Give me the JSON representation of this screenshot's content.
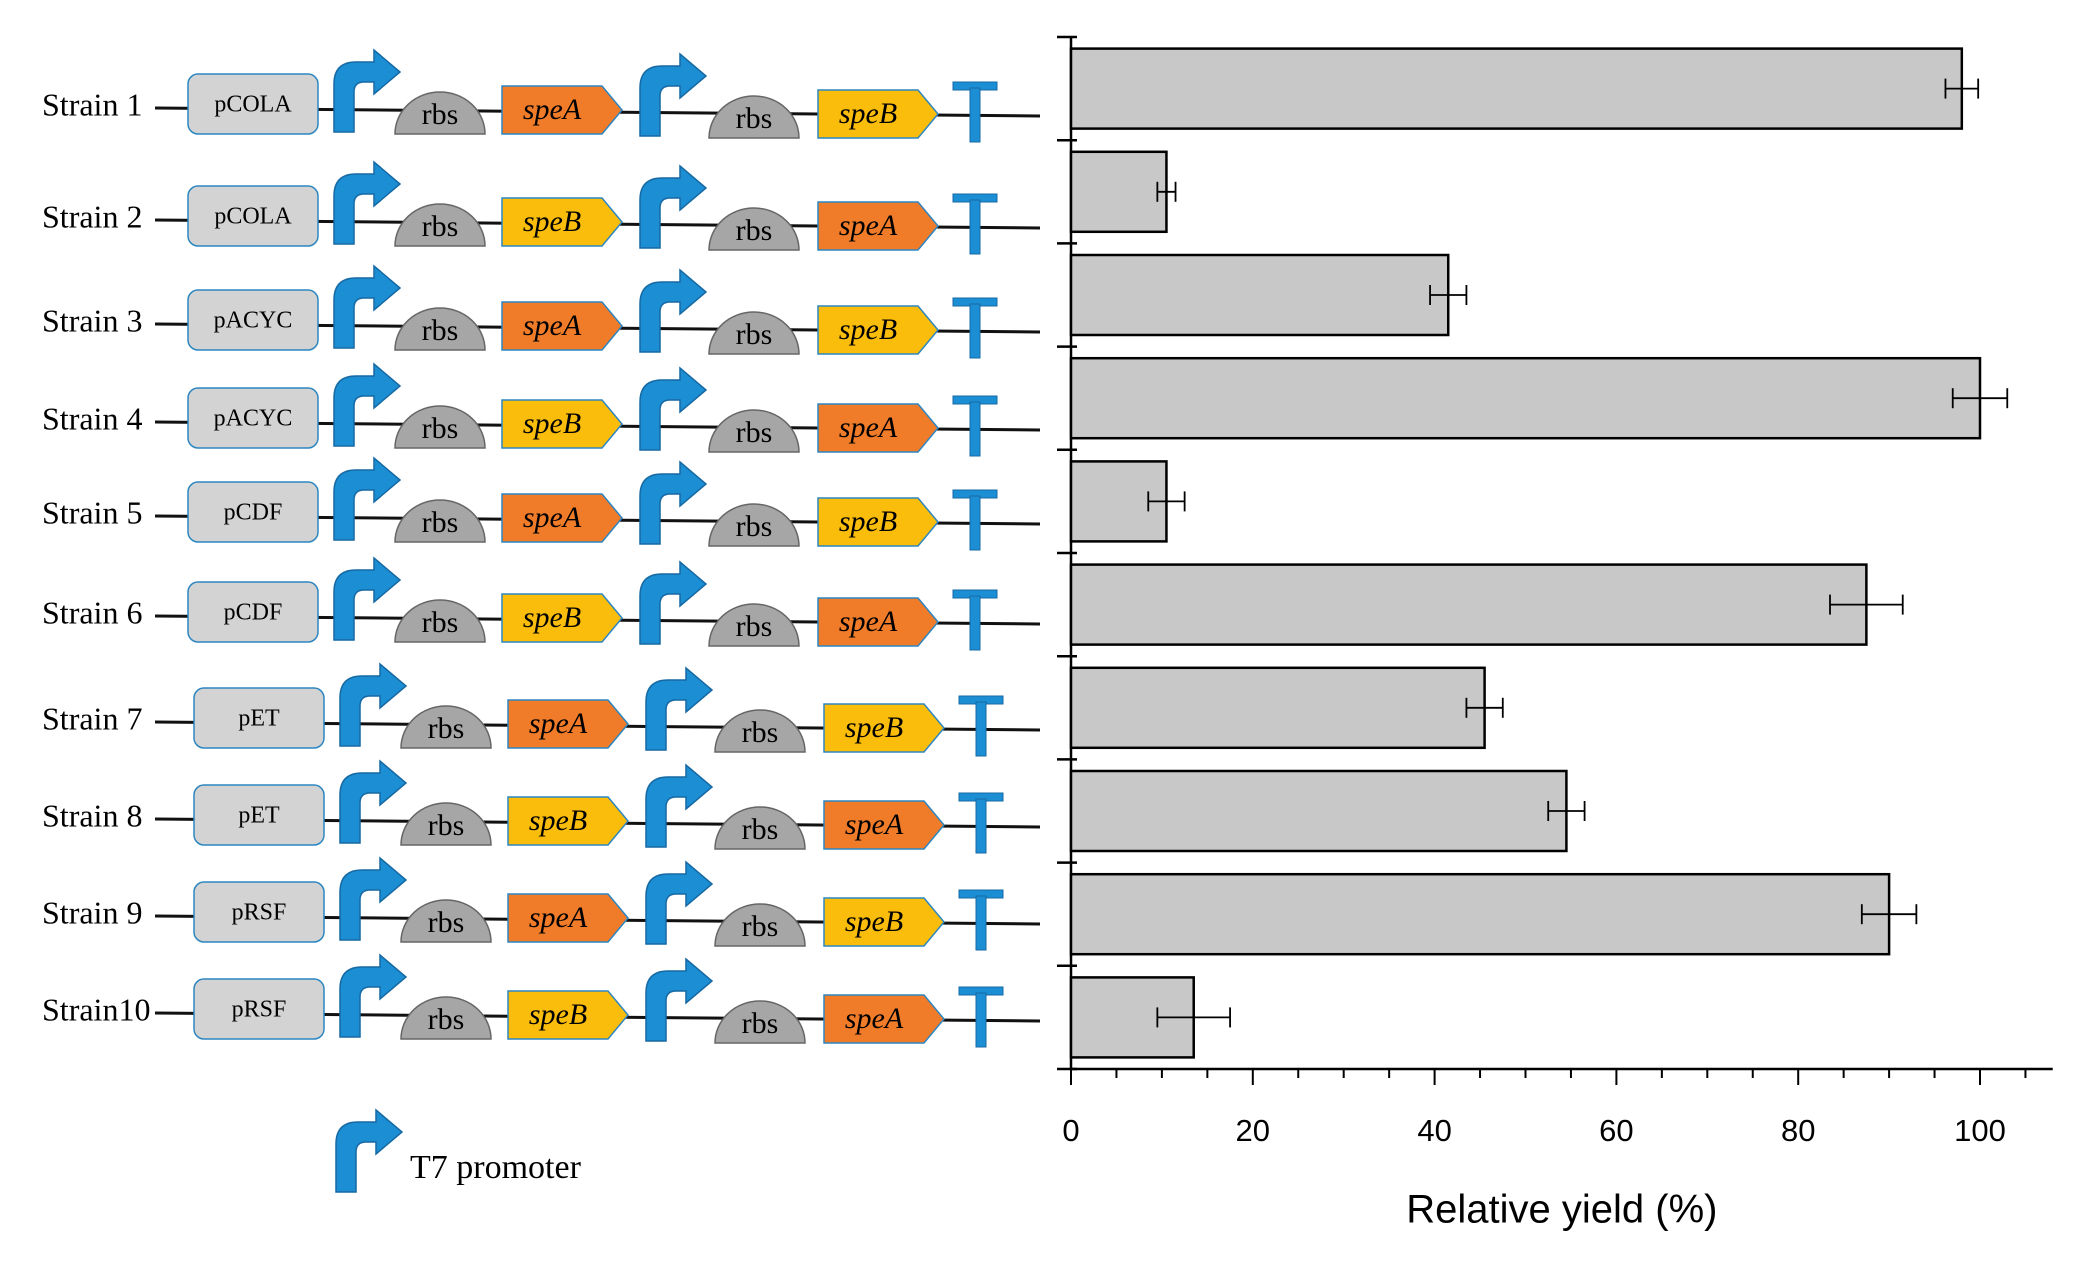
{
  "construct_panel": {
    "strains": [
      {
        "label": "Strain 1",
        "plasmid": "pCOLA",
        "gene1": "speA",
        "gene2": "speB"
      },
      {
        "label": "Strain 2",
        "plasmid": "pCOLA",
        "gene1": "speB",
        "gene2": "speA"
      },
      {
        "label": "Strain 3",
        "plasmid": "pACYC",
        "gene1": "speA",
        "gene2": "speB"
      },
      {
        "label": "Strain 4",
        "plasmid": "pACYC",
        "gene1": "speB",
        "gene2": "speA"
      },
      {
        "label": "Strain 5",
        "plasmid": "pCDF",
        "gene1": "speA",
        "gene2": "speB"
      },
      {
        "label": "Strain 6",
        "plasmid": "pCDF",
        "gene1": "speB",
        "gene2": "speA"
      },
      {
        "label": "Strain 7",
        "plasmid": "pET",
        "gene1": "speA",
        "gene2": "speB"
      },
      {
        "label": "Strain 8",
        "plasmid": "pET",
        "gene1": "speB",
        "gene2": "speA"
      },
      {
        "label": "Strain 9",
        "plasmid": "pRSF",
        "gene1": "speA",
        "gene2": "speB"
      },
      {
        "label": "Strain10",
        "plasmid": "pRSF",
        "gene1": "speB",
        "gene2": "speA"
      }
    ],
    "rbs_label": "rbs",
    "legend_label": "T7 promoter",
    "colors": {
      "plasmid_fill": "#d3d3d3",
      "plasmid_stroke": "#2e86c1",
      "promoter": "#1c8fd4",
      "rbs": "#a6a6a6",
      "speA": "#f07c2a",
      "speB": "#fbbd0b",
      "terminator": "#1c8fd4",
      "gene_stroke": "#2e86c1"
    }
  },
  "chart_data": {
    "type": "bar",
    "orientation": "horizontal",
    "categories": [
      "Strain 1",
      "Strain 2",
      "Strain 3",
      "Strain 4",
      "Strain 5",
      "Strain 6",
      "Strain 7",
      "Strain 8",
      "Strain 9",
      "Strain10"
    ],
    "values": [
      98,
      10.5,
      41.5,
      100,
      10.5,
      87.5,
      45.5,
      54.5,
      90,
      13.5
    ],
    "errors": [
      1.8,
      1.0,
      2.0,
      3.0,
      2.0,
      4.0,
      2.0,
      2.0,
      3.0,
      4.0
    ],
    "xlabel": "Relative yield (%)",
    "xlim": [
      0,
      108
    ],
    "xticks": [
      0,
      20,
      40,
      60,
      80,
      100
    ],
    "bar_color": "#c8c8c8",
    "grid": false
  }
}
